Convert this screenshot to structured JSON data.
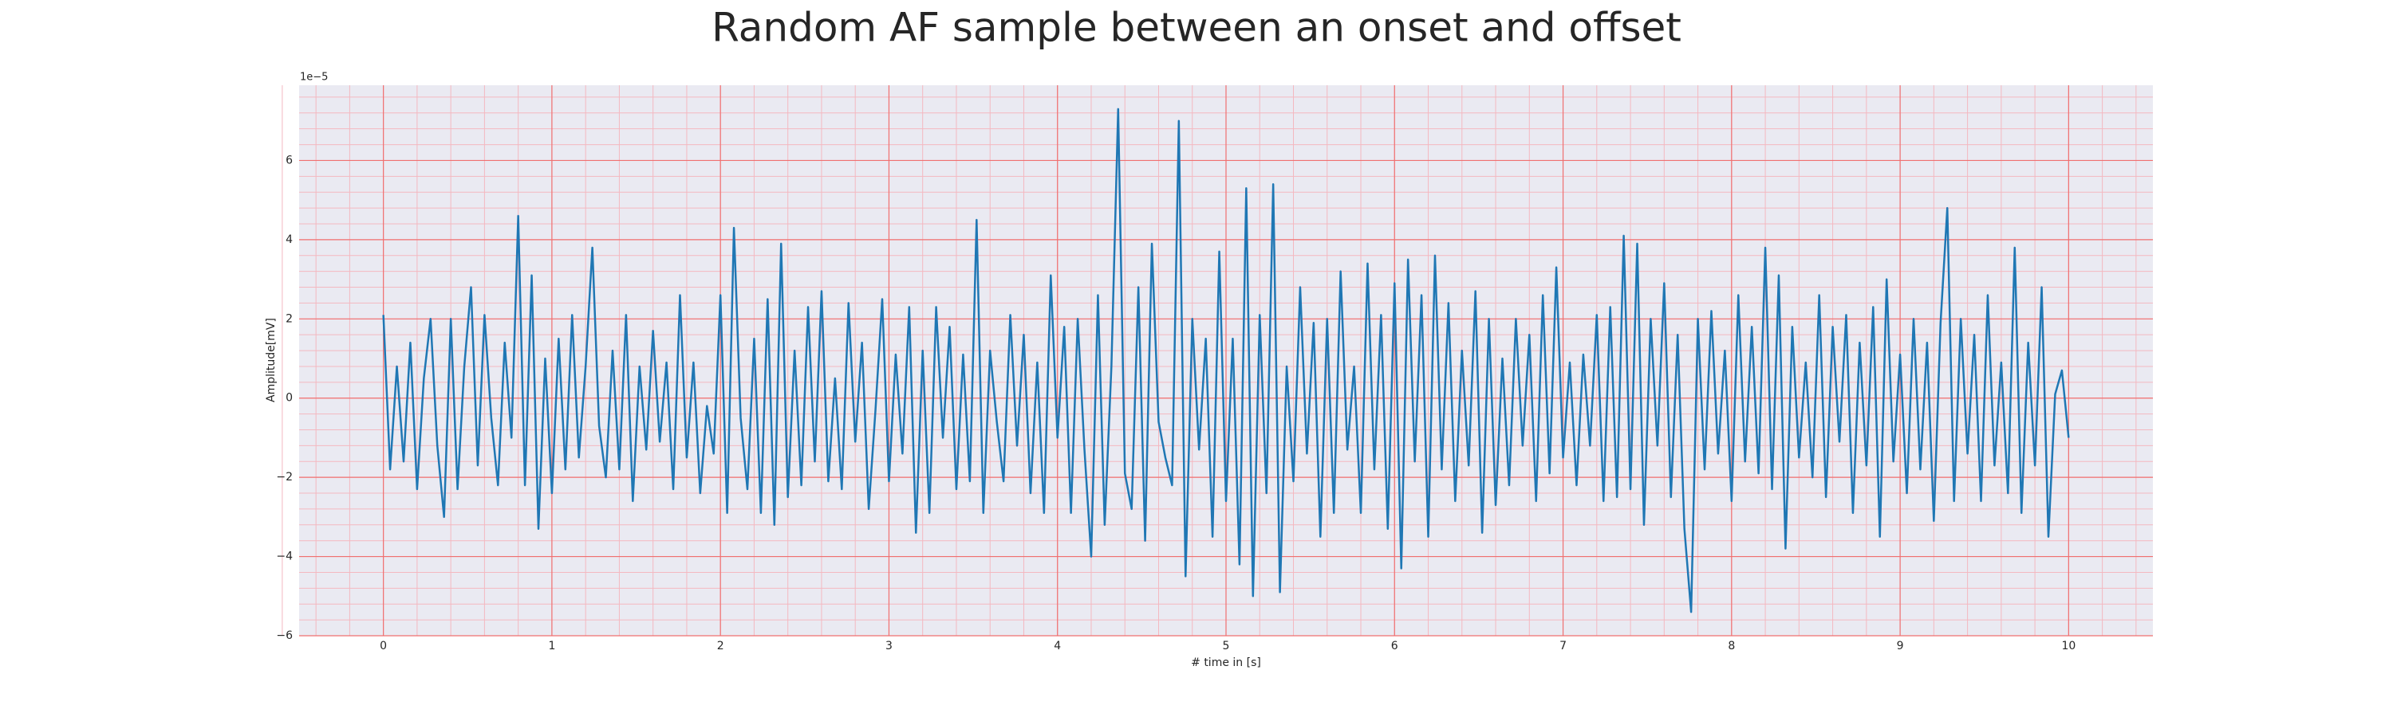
{
  "chart_data": {
    "type": "line",
    "title": "Random AF sample between an onset and offset",
    "xlabel": "# time in [s]",
    "ylabel": "Amplitude[mV]",
    "y_offset_text": "1e−5",
    "color": "#1f77b4",
    "grid": true,
    "minor_grid": true,
    "xlim": [
      -0.5,
      10.5
    ],
    "ylim": [
      -6,
      7.9
    ],
    "xticks": [
      0,
      1,
      2,
      3,
      4,
      5,
      6,
      7,
      8,
      9,
      10
    ],
    "yticks": [
      {
        "value": -6,
        "label": "−6"
      },
      {
        "value": -4,
        "label": "−4"
      },
      {
        "value": -2,
        "label": "−2"
      },
      0,
      2,
      4,
      6
    ],
    "x": [
      0,
      0.04,
      0.08,
      0.12,
      0.16,
      0.2,
      0.24,
      0.28,
      0.32,
      0.36,
      0.4,
      0.44,
      0.48,
      0.52,
      0.56,
      0.6,
      0.64,
      0.68,
      0.72,
      0.76,
      0.8,
      0.84,
      0.88,
      0.92,
      0.96,
      1,
      1.04,
      1.08,
      1.12,
      1.16,
      1.2,
      1.24,
      1.28,
      1.32,
      1.36,
      1.4,
      1.44,
      1.48,
      1.52,
      1.56,
      1.6,
      1.64,
      1.68,
      1.72,
      1.76,
      1.8,
      1.84,
      1.88,
      1.92,
      1.96,
      2,
      2.04,
      2.08,
      2.12,
      2.16,
      2.2,
      2.24,
      2.28,
      2.32,
      2.36,
      2.4,
      2.44,
      2.48,
      2.52,
      2.56,
      2.6,
      2.64,
      2.68,
      2.72,
      2.76,
      2.8,
      2.84,
      2.88,
      2.92,
      2.96,
      3,
      3.04,
      3.08,
      3.12,
      3.16,
      3.2,
      3.24,
      3.28,
      3.32,
      3.36,
      3.4,
      3.44,
      3.48,
      3.52,
      3.56,
      3.6,
      3.64,
      3.68,
      3.72,
      3.76,
      3.8,
      3.84,
      3.88,
      3.92,
      3.96,
      4,
      4.04,
      4.08,
      4.12,
      4.16,
      4.2,
      4.24,
      4.28,
      4.32,
      4.36,
      4.4,
      4.44,
      4.48,
      4.52,
      4.56,
      4.6,
      4.64,
      4.68,
      4.72,
      4.76,
      4.8,
      4.84,
      4.88,
      4.92,
      4.96,
      5,
      5.04,
      5.08,
      5.12,
      5.16,
      5.2,
      5.24,
      5.28,
      5.32,
      5.36,
      5.4,
      5.44,
      5.48,
      5.52,
      5.56,
      5.6,
      5.64,
      5.68,
      5.72,
      5.76,
      5.8,
      5.84,
      5.88,
      5.92,
      5.96,
      6,
      6.04,
      6.08,
      6.12,
      6.16,
      6.2,
      6.24,
      6.28,
      6.32,
      6.36,
      6.4,
      6.44,
      6.48,
      6.52,
      6.56,
      6.6,
      6.64,
      6.68,
      6.72,
      6.76,
      6.8,
      6.84,
      6.88,
      6.92,
      6.96,
      7,
      7.04,
      7.08,
      7.12,
      7.16,
      7.2,
      7.24,
      7.28,
      7.32,
      7.36,
      7.4,
      7.44,
      7.48,
      7.52,
      7.56,
      7.6,
      7.64,
      7.68,
      7.72,
      7.76,
      7.8,
      7.84,
      7.88,
      7.92,
      7.96,
      8,
      8.04,
      8.08,
      8.12,
      8.16,
      8.2,
      8.24,
      8.28,
      8.32,
      8.36,
      8.4,
      8.44,
      8.48,
      8.52,
      8.56,
      8.6,
      8.64,
      8.68,
      8.72,
      8.76,
      8.8,
      8.84,
      8.88,
      8.92,
      8.96,
      9,
      9.04,
      9.08,
      9.12,
      9.16,
      9.2,
      9.24,
      9.28,
      9.32,
      9.36,
      9.4,
      9.44,
      9.48,
      9.52,
      9.56,
      9.6,
      9.64,
      9.68,
      9.72,
      9.76,
      9.8,
      9.84,
      9.88,
      9.92,
      9.96,
      10
    ],
    "values": [
      2.1,
      -1.8,
      0.8,
      -1.6,
      1.4,
      -2.3,
      0.5,
      2.0,
      -1.2,
      -3.0,
      2.0,
      -2.3,
      0.8,
      2.8,
      -1.7,
      2.1,
      -0.5,
      -2.2,
      1.4,
      -1.0,
      4.6,
      -2.2,
      3.1,
      -3.3,
      1.0,
      -2.4,
      1.5,
      -1.8,
      2.1,
      -1.5,
      0.8,
      3.8,
      -0.7,
      -2.0,
      1.2,
      -1.8,
      2.1,
      -2.6,
      0.8,
      -1.3,
      1.7,
      -1.1,
      0.9,
      -2.3,
      2.6,
      -1.5,
      0.9,
      -2.4,
      -0.2,
      -1.4,
      2.6,
      -2.9,
      4.3,
      -0.5,
      -2.3,
      1.5,
      -2.9,
      2.5,
      -3.2,
      3.9,
      -2.5,
      1.2,
      -2.2,
      2.3,
      -1.6,
      2.7,
      -2.1,
      0.5,
      -2.3,
      2.4,
      -1.1,
      1.4,
      -2.8,
      -0.3,
      2.5,
      -2.1,
      1.1,
      -1.4,
      2.3,
      -3.4,
      1.2,
      -2.9,
      2.3,
      -1.0,
      1.8,
      -2.3,
      1.1,
      -2.1,
      4.5,
      -2.9,
      1.2,
      -0.6,
      -2.1,
      2.1,
      -1.2,
      1.6,
      -2.4,
      0.9,
      -2.9,
      3.1,
      -1.0,
      1.8,
      -2.9,
      2.0,
      -1.3,
      -4.0,
      2.6,
      -3.2,
      0.8,
      7.3,
      -1.9,
      -2.8,
      2.8,
      -3.6,
      3.9,
      -0.6,
      -1.5,
      -2.2,
      7.0,
      -4.5,
      2.0,
      -1.3,
      1.5,
      -3.5,
      3.7,
      -2.6,
      1.5,
      -4.2,
      5.3,
      -5.0,
      2.1,
      -2.4,
      5.4,
      -4.9,
      0.8,
      -2.1,
      2.8,
      -1.4,
      1.9,
      -3.5,
      2.0,
      -2.9,
      3.2,
      -1.3,
      0.8,
      -2.9,
      3.4,
      -1.8,
      2.1,
      -3.3,
      2.9,
      -4.3,
      3.5,
      -1.6,
      2.6,
      -3.5,
      3.6,
      -1.8,
      2.4,
      -2.6,
      1.2,
      -1.7,
      2.7,
      -3.4,
      2.0,
      -2.7,
      1.0,
      -2.2,
      2.0,
      -1.2,
      1.6,
      -2.6,
      2.6,
      -1.9,
      3.3,
      -1.5,
      0.9,
      -2.2,
      1.1,
      -1.2,
      2.1,
      -2.6,
      2.3,
      -2.5,
      4.1,
      -2.3,
      3.9,
      -3.2,
      2.0,
      -1.2,
      2.9,
      -2.5,
      1.6,
      -3.3,
      -5.4,
      2.0,
      -1.8,
      2.2,
      -1.4,
      1.2,
      -2.6,
      2.6,
      -1.6,
      1.8,
      -1.9,
      3.8,
      -2.3,
      3.1,
      -3.8,
      1.8,
      -1.5,
      0.9,
      -2.0,
      2.6,
      -2.5,
      1.8,
      -1.1,
      2.1,
      -2.9,
      1.4,
      -1.7,
      2.3,
      -3.5,
      3.0,
      -1.6,
      1.1,
      -2.4,
      2.0,
      -1.8,
      1.4,
      -3.1,
      1.9,
      4.8,
      -2.6,
      2.0,
      -1.4,
      1.6,
      -2.6,
      2.6,
      -1.7,
      0.9,
      -2.4,
      3.8,
      -2.9,
      1.4,
      -1.7,
      2.8,
      -3.5,
      0.1,
      0.7,
      -1.0
    ]
  }
}
